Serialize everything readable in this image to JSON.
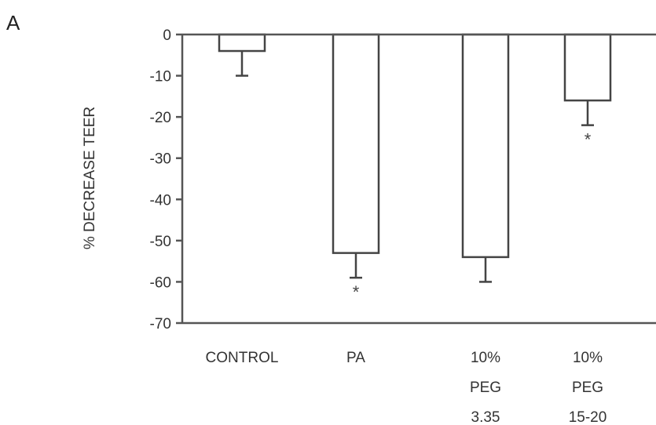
{
  "panel_label": "A",
  "chart_data": {
    "type": "bar",
    "title": "",
    "xlabel": "",
    "ylabel": "% DECREASE TEER",
    "ylim": [
      -70,
      0
    ],
    "yticks": [
      0,
      -10,
      -20,
      -30,
      -40,
      -50,
      -60,
      -70
    ],
    "ytick_labels": [
      "0",
      "-10",
      "-20",
      "-30",
      "-40",
      "-50",
      "-60",
      "-70"
    ],
    "categories": [
      [
        "CONTROL"
      ],
      [
        "PA"
      ],
      [
        "10%",
        "PEG",
        "3.35"
      ],
      [
        "10%",
        "PEG",
        "15-20"
      ]
    ],
    "values": [
      -4,
      -53,
      -54,
      -16
    ],
    "error_low": [
      -10,
      -59,
      -60,
      -22
    ],
    "significance": [
      "",
      "*",
      "",
      "*"
    ],
    "grid": false,
    "legend": "none"
  }
}
